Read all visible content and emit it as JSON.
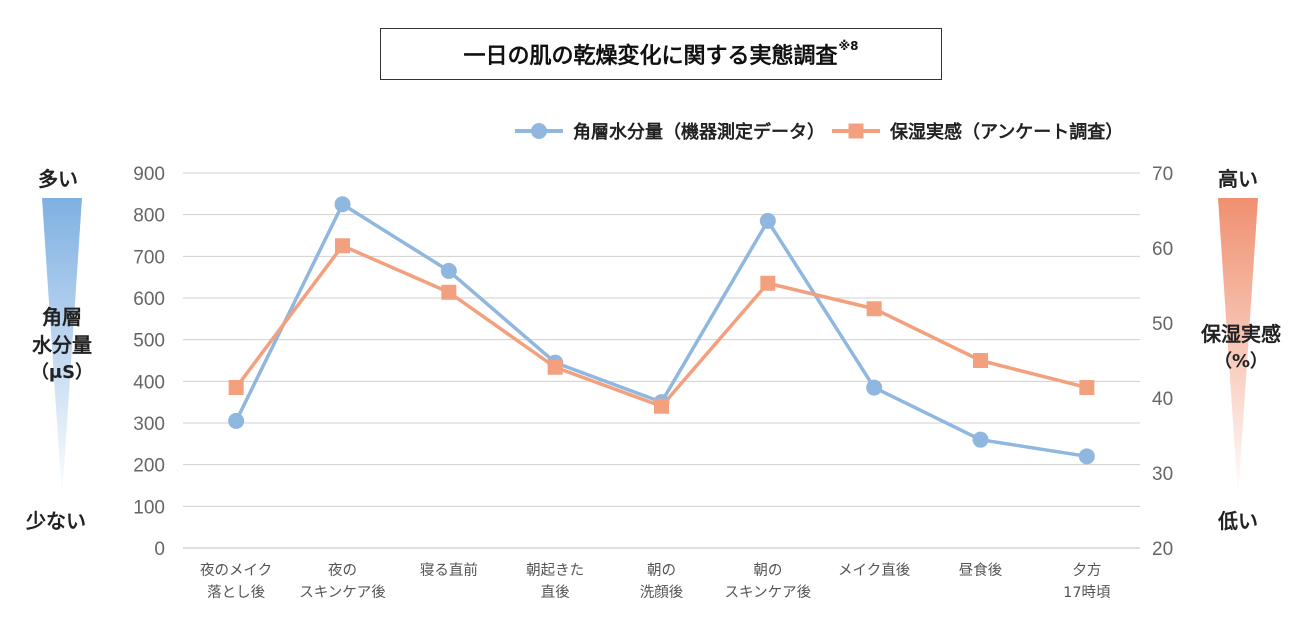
{
  "title": {
    "main": "一日の肌の乾燥変化に関する実態調査",
    "note": "※8"
  },
  "left_axis": {
    "high_label": "多い",
    "low_label": "少ない",
    "name_lines": [
      "角層",
      "水分量",
      "（μS）"
    ]
  },
  "right_axis": {
    "high_label": "高い",
    "low_label": "低い",
    "name_lines": [
      "保湿実感",
      "（%）"
    ]
  },
  "colors": {
    "blue": "#8fb7df",
    "orange": "#f2a07e",
    "grid": "#d0d0d0",
    "tick": "#666666"
  },
  "chart_data": {
    "type": "line",
    "categories": [
      [
        "夜のメイク",
        "落とし後"
      ],
      [
        "夜の",
        "スキンケア後"
      ],
      [
        "寝る直前"
      ],
      [
        "朝起きた",
        "直後"
      ],
      [
        "朝の",
        "洗顔後"
      ],
      [
        "朝の",
        "スキンケア後"
      ],
      [
        "メイク直後"
      ],
      [
        "昼食後"
      ],
      [
        "夕方",
        "17時頃"
      ]
    ],
    "y_left": {
      "min": 0,
      "max": 900,
      "step": 100,
      "ticks": [
        "0",
        "100",
        "200",
        "300",
        "400",
        "500",
        "600",
        "700",
        "800",
        "900"
      ]
    },
    "y_right": {
      "min": 20,
      "max": 70,
      "step": 10,
      "ticks": [
        "20",
        "30",
        "40",
        "50",
        "60",
        "70"
      ]
    },
    "grid": true,
    "legend_position": "top-right",
    "series": [
      {
        "name": "角層水分量（機器測定データ）",
        "axis": "left",
        "marker": "circle",
        "color": "#8fb7df",
        "values": [
          305,
          825,
          665,
          445,
          350,
          785,
          385,
          260,
          220
        ]
      },
      {
        "name": "保湿実感（アンケート調査）",
        "axis": "right",
        "marker": "square",
        "color": "#f2a07e",
        "values": [
          41.4,
          60.3,
          54.1,
          44.1,
          38.9,
          55.3,
          51.9,
          45.0,
          41.4
        ]
      }
    ]
  }
}
